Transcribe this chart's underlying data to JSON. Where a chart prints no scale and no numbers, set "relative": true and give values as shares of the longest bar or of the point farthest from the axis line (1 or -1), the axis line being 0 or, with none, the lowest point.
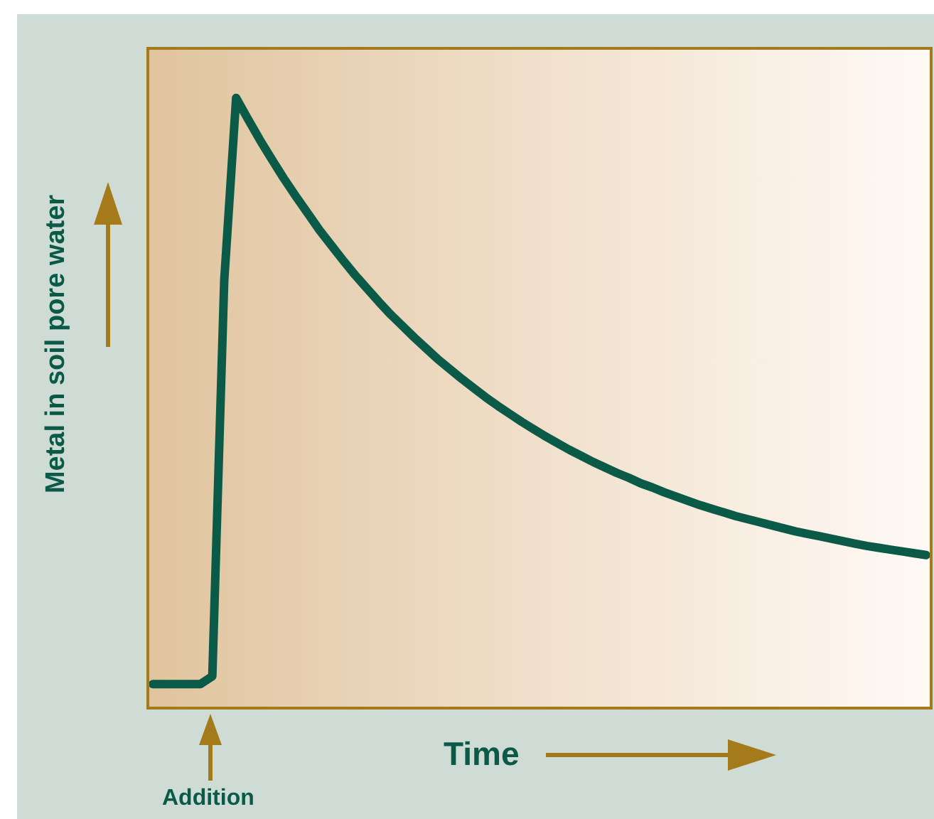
{
  "chart_data": {
    "type": "line",
    "relative": true,
    "xlabel": "Time",
    "ylabel": "Metal in soil pore water",
    "annotations": [
      "Addition"
    ],
    "categories": [
      null,
      null,
      null,
      null,
      null,
      null,
      null,
      null,
      null,
      null,
      null,
      null,
      null,
      null,
      null,
      null,
      null,
      null,
      null,
      null,
      null,
      null,
      null,
      null,
      null,
      null,
      null,
      null,
      null,
      null,
      null,
      null,
      null,
      null,
      null,
      null,
      null,
      null,
      null,
      null,
      null,
      null,
      null,
      null,
      null,
      null,
      null,
      null,
      null,
      null,
      null,
      null,
      null,
      null,
      null,
      null,
      null,
      null,
      null,
      null,
      null,
      null,
      null,
      null,
      null,
      null
    ],
    "series": [
      {
        "color": "#0b5a48",
        "values": [
          0.037,
          0.037,
          0.037,
          0.037,
          0.037,
          0.05,
          0.7,
          1.0,
          0.965,
          0.931,
          0.899,
          0.868,
          0.839,
          0.811,
          0.783,
          0.758,
          0.733,
          0.709,
          0.687,
          0.665,
          0.644,
          0.625,
          0.606,
          0.588,
          0.57,
          0.554,
          0.538,
          0.523,
          0.508,
          0.494,
          0.481,
          0.468,
          0.456,
          0.444,
          0.433,
          0.422,
          0.412,
          0.402,
          0.393,
          0.384,
          0.376,
          0.367,
          0.36,
          0.352,
          0.345,
          0.338,
          0.331,
          0.325,
          0.319,
          0.313,
          0.308,
          0.303,
          0.298,
          0.293,
          0.288,
          0.284,
          0.28,
          0.276,
          0.272,
          0.268,
          0.264,
          0.261,
          0.258,
          0.255,
          0.252,
          0.249
        ]
      }
    ]
  }
}
